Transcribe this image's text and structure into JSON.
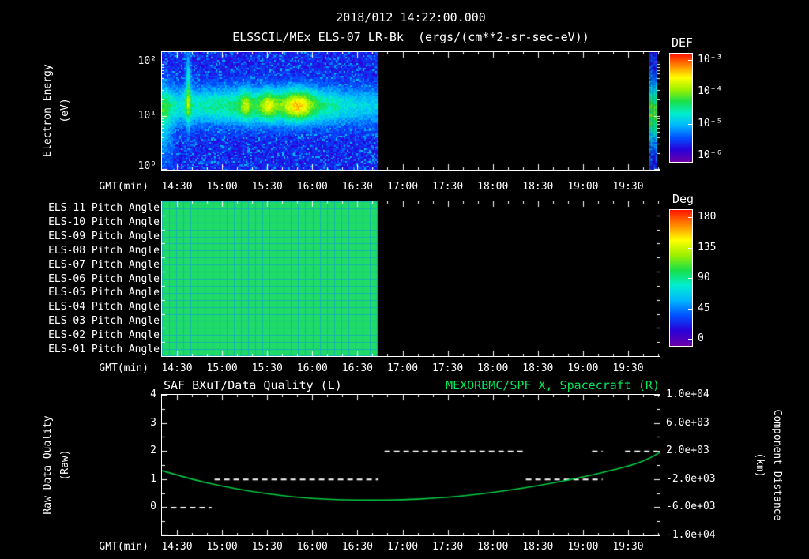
{
  "page": {
    "timestamp": "2018/012 14:22:00.000"
  },
  "colors": {
    "background": "#000000",
    "text": "#ffffff",
    "green_text": "#00e65c",
    "curve_green": "#00cc44",
    "pitch_fill": "#1fdc64",
    "pitch_grid": "#17b2b2",
    "colormap": [
      "#6a00a8",
      "#2a00d8",
      "#0050ff",
      "#00b4ff",
      "#00eed0",
      "#18e04a",
      "#9cf000",
      "#ffff00",
      "#ff8800",
      "#ff1400"
    ]
  },
  "time_axis": {
    "label": "GMT(min)",
    "start_min": 860,
    "end_min": 1191,
    "minor_step_min": 10,
    "major_ticks": [
      {
        "t": 870,
        "label": "14:30"
      },
      {
        "t": 900,
        "label": "15:00"
      },
      {
        "t": 930,
        "label": "15:30"
      },
      {
        "t": 960,
        "label": "16:00"
      },
      {
        "t": 990,
        "label": "16:30"
      },
      {
        "t": 1020,
        "label": "17:00"
      },
      {
        "t": 1050,
        "label": "17:30"
      },
      {
        "t": 1080,
        "label": "18:00"
      },
      {
        "t": 1110,
        "label": "18:30"
      },
      {
        "t": 1140,
        "label": "19:00"
      },
      {
        "t": 1170,
        "label": "19:30"
      }
    ]
  },
  "chart_data": [
    {
      "id": "electron_energy_spectrogram",
      "type": "heatmap",
      "title": "ELSSCIL/MEx ELS-07 LR-Bk  (ergs/(cm**2-sr-sec-eV))",
      "ylabel_line1": "Electron Energy",
      "ylabel_line2": "(eV)",
      "xlabel": "GMT(min)",
      "y_scale": "log",
      "y_top_exp": 2.18,
      "y_ticks": [
        {
          "exp": 2,
          "label": "10²"
        },
        {
          "exp": 1,
          "label": "10¹"
        },
        {
          "exp": 0,
          "label": "10⁰"
        }
      ],
      "colorbar": {
        "label": "DEF",
        "ticks": [
          "10⁻³",
          "10⁻⁴",
          "10⁻⁵",
          "10⁻⁶"
        ]
      },
      "data_segments_min": [
        [
          860,
          1003
        ],
        [
          1184,
          1189
        ]
      ],
      "visible_features": {
        "enhanced_flux_band_eV": [
          8,
          40
        ],
        "hotspot_interval": "15:20-16:10",
        "high_energy_burst": "14:37",
        "gap_after": "16:43"
      }
    },
    {
      "id": "pitch_angle_panel",
      "type": "heatmap",
      "rows": [
        "ELS-11 Pitch Angle",
        "ELS-10 Pitch Angle",
        "ELS-09 Pitch Angle",
        "ELS-08 Pitch Angle",
        "ELS-07 Pitch Angle",
        "ELS-06 Pitch Angle",
        "ELS-05 Pitch Angle",
        "ELS-04 Pitch Angle",
        "ELS-03 Pitch Angle",
        "ELS-02 Pitch Angle",
        "ELS-01 Pitch Angle"
      ],
      "xlabel": "GMT(min)",
      "colorbar": {
        "label": "Deg",
        "ticks": [
          "180",
          "135",
          "90",
          "45",
          "0"
        ],
        "range": [
          0,
          180
        ]
      },
      "data_segments_min": [
        [
          860,
          1003
        ]
      ],
      "approx_value_deg": 90
    },
    {
      "id": "quality_and_distance",
      "type": "line",
      "title_left": "SAF_BXuT/Data Quality (L)",
      "title_right": "MEXORBMC/SPF X, Spacecraft (R)",
      "xlabel": "GMT(min)",
      "ylabel_left_line1": "Raw Data Quality",
      "ylabel_left_line2": "(Raw)",
      "ylabel_right_line1": "Component Distance",
      "ylabel_right_line2": "(km)",
      "y_left_ticks": [
        "4",
        "3",
        "2",
        "1",
        "0"
      ],
      "y_left_axis_range": [
        -1,
        4
      ],
      "y_right_ticks": [
        "1.0e+04",
        "6.0e+03",
        "2.0e+03",
        "-2.0e+03",
        "-6.0e+03",
        "-1.0e+04"
      ],
      "y_right_range": [
        10000,
        -10000
      ],
      "series": [
        {
          "name": "MEXORBMC/SPF X Spacecraft component distance",
          "axis": "right",
          "style": "solid",
          "points": [
            [
              860,
              -800
            ],
            [
              880,
              -2050
            ],
            [
              900,
              -3000
            ],
            [
              920,
              -3780
            ],
            [
              940,
              -4380
            ],
            [
              960,
              -4760
            ],
            [
              980,
              -4950
            ],
            [
              1000,
              -5000
            ],
            [
              1020,
              -4940
            ],
            [
              1040,
              -4740
            ],
            [
              1060,
              -4400
            ],
            [
              1080,
              -3900
            ],
            [
              1100,
              -3300
            ],
            [
              1120,
              -2550
            ],
            [
              1140,
              -1700
            ],
            [
              1160,
              -700
            ],
            [
              1175,
              150
            ],
            [
              1185,
              1050
            ],
            [
              1191,
              1800
            ]
          ]
        },
        {
          "name": "SAF_BXuT raw data quality",
          "axis": "left",
          "style": "dashed",
          "segments": [
            {
              "level": 0,
              "t_start": 866,
              "t_end": 893
            },
            {
              "level": 1,
              "t_start": 895,
              "t_end": 1004
            },
            {
              "level": 2,
              "t_start": 1008,
              "t_end": 1102
            },
            {
              "level": 1,
              "t_start": 1102,
              "t_end": 1153
            },
            {
              "level": 2,
              "t_start": 1146,
              "t_end": 1153
            },
            {
              "level": 2,
              "t_start": 1168,
              "t_end": 1189
            }
          ]
        }
      ]
    }
  ]
}
